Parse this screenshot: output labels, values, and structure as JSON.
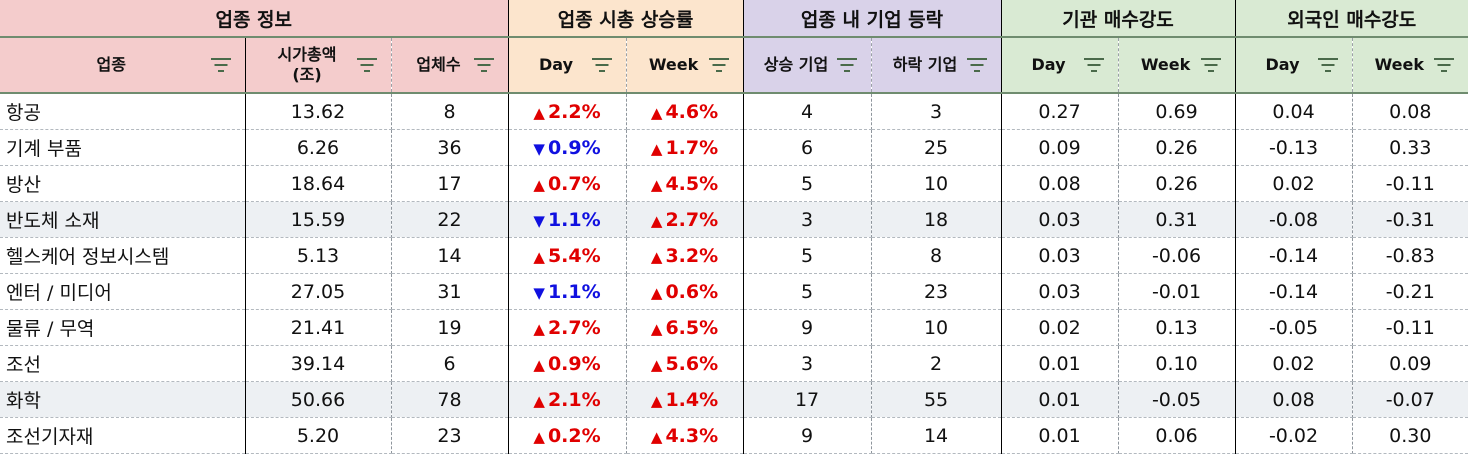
{
  "groups": {
    "info": "업종 정보",
    "cap_change": "업종 시총 상승률",
    "updown": "업종 내 기업 등락",
    "inst": "기관 매수강도",
    "foreign": "외국인 매수강도"
  },
  "columns": {
    "sector": "업종",
    "cap_line1": "시가총액",
    "cap_line2": "(조)",
    "count": "업체수",
    "cap_day": "Day",
    "cap_week": "Week",
    "up_cos": "상승 기업",
    "down_cos": "하락 기업",
    "inst_day": "Day",
    "inst_week": "Week",
    "for_day": "Day",
    "for_week": "Week"
  },
  "colors": {
    "info_bg": "#f4cccc",
    "change_bg": "#fce5cd",
    "updown_bg": "#d9d2e9",
    "strength_bg": "#d9ead3",
    "up": "#e00000",
    "down": "#1010e0"
  },
  "rows": [
    {
      "sector": "항공",
      "cap": "13.62",
      "count": "8",
      "day": "2.2%",
      "day_dir": "up",
      "week": "4.6%",
      "week_dir": "up",
      "up": "4",
      "down": "3",
      "inst_day": "0.27",
      "inst_week": "0.69",
      "for_day": "0.04",
      "for_week": "0.08"
    },
    {
      "sector": "기계 부품",
      "cap": "6.26",
      "count": "36",
      "day": "0.9%",
      "day_dir": "down",
      "week": "1.7%",
      "week_dir": "up",
      "up": "6",
      "down": "25",
      "inst_day": "0.09",
      "inst_week": "0.26",
      "for_day": "-0.13",
      "for_week": "0.33"
    },
    {
      "sector": "방산",
      "cap": "18.64",
      "count": "17",
      "day": "0.7%",
      "day_dir": "up",
      "week": "4.5%",
      "week_dir": "up",
      "up": "5",
      "down": "10",
      "inst_day": "0.08",
      "inst_week": "0.26",
      "for_day": "0.02",
      "for_week": "-0.11"
    },
    {
      "sector": "반도체 소재",
      "cap": "15.59",
      "count": "22",
      "day": "1.1%",
      "day_dir": "down",
      "week": "2.7%",
      "week_dir": "up",
      "up": "3",
      "down": "18",
      "inst_day": "0.03",
      "inst_week": "0.31",
      "for_day": "-0.08",
      "for_week": "-0.31"
    },
    {
      "sector": "헬스케어 정보시스템",
      "cap": "5.13",
      "count": "14",
      "day": "5.4%",
      "day_dir": "up",
      "week": "3.2%",
      "week_dir": "up",
      "up": "5",
      "down": "8",
      "inst_day": "0.03",
      "inst_week": "-0.06",
      "for_day": "-0.14",
      "for_week": "-0.83"
    },
    {
      "sector": "엔터 / 미디어",
      "cap": "27.05",
      "count": "31",
      "day": "1.1%",
      "day_dir": "down",
      "week": "0.6%",
      "week_dir": "up",
      "up": "5",
      "down": "23",
      "inst_day": "0.03",
      "inst_week": "-0.01",
      "for_day": "-0.14",
      "for_week": "-0.21"
    },
    {
      "sector": "물류 / 무역",
      "cap": "21.41",
      "count": "19",
      "day": "2.7%",
      "day_dir": "up",
      "week": "6.5%",
      "week_dir": "up",
      "up": "9",
      "down": "10",
      "inst_day": "0.02",
      "inst_week": "0.13",
      "for_day": "-0.05",
      "for_week": "-0.11"
    },
    {
      "sector": "조선",
      "cap": "39.14",
      "count": "6",
      "day": "0.9%",
      "day_dir": "up",
      "week": "5.6%",
      "week_dir": "up",
      "up": "3",
      "down": "2",
      "inst_day": "0.01",
      "inst_week": "0.10",
      "for_day": "0.02",
      "for_week": "0.09"
    },
    {
      "sector": "화학",
      "cap": "50.66",
      "count": "78",
      "day": "2.1%",
      "day_dir": "up",
      "week": "1.4%",
      "week_dir": "up",
      "up": "17",
      "down": "55",
      "inst_day": "0.01",
      "inst_week": "-0.05",
      "for_day": "0.08",
      "for_week": "-0.07"
    },
    {
      "sector": "조선기자재",
      "cap": "5.20",
      "count": "23",
      "day": "0.2%",
      "day_dir": "up",
      "week": "4.3%",
      "week_dir": "up",
      "up": "9",
      "down": "14",
      "inst_day": "0.01",
      "inst_week": "0.06",
      "for_day": "-0.02",
      "for_week": "0.30"
    }
  ]
}
